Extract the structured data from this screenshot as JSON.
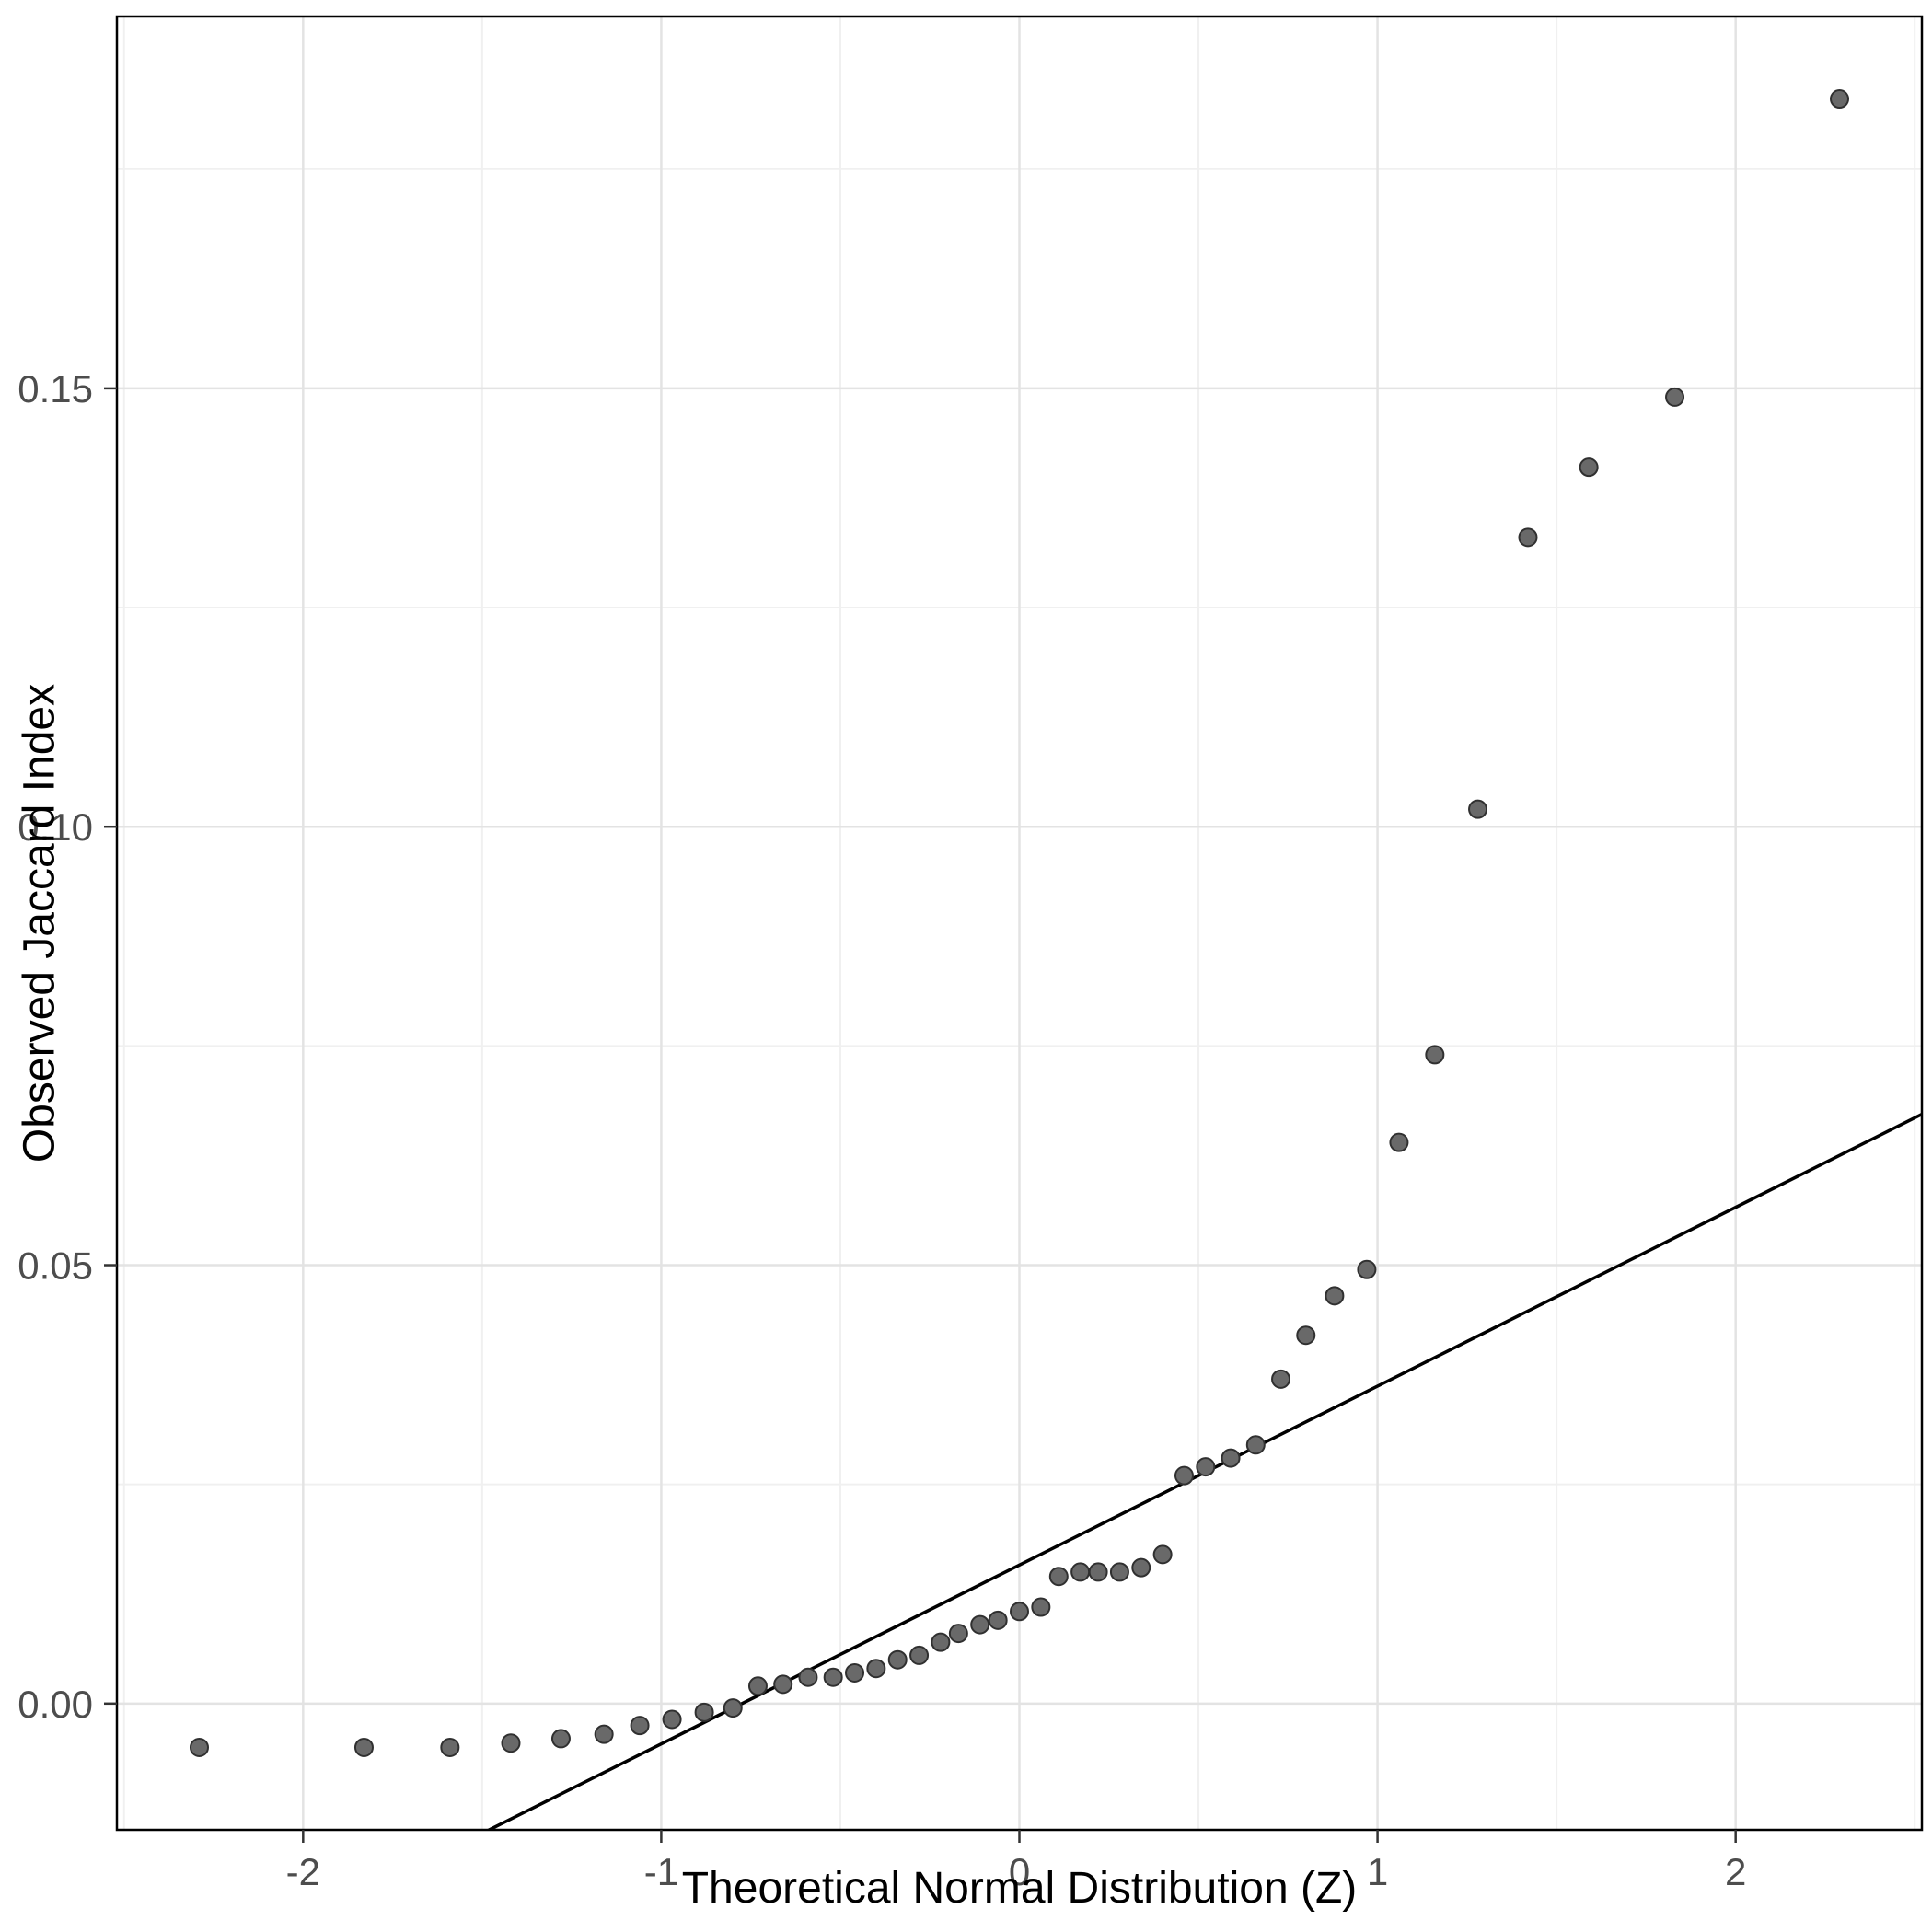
{
  "figure": {
    "background": "#ffffff"
  },
  "chart_data": {
    "type": "scatter",
    "title": "",
    "xlabel": "Theoretical Normal Distribution (Z)",
    "ylabel": "Observed Jaccard Index",
    "xlim": [
      -2.52,
      2.52
    ],
    "ylim": [
      -0.0144,
      0.1924
    ],
    "x_ticks": [
      -2,
      -1,
      0,
      1,
      2
    ],
    "x_tick_labels": [
      "-2",
      "-1",
      "0",
      "1",
      "2"
    ],
    "x_minor": [
      -2.5,
      -1.5,
      -0.5,
      0.5,
      1.5,
      2.5
    ],
    "y_ticks": [
      0,
      0.05,
      0.1,
      0.15
    ],
    "y_tick_labels": [
      "0.00",
      "0.05",
      "0.10",
      "0.15"
    ],
    "y_minor": [
      0.025,
      0.075,
      0.125,
      0.175
    ],
    "grid": "major+minor",
    "legend": "none",
    "panel": {
      "background": "#ffffff",
      "border_color": "#000000",
      "grid_major_color": "#e3e3e3",
      "grid_minor_color": "#f0f0f0",
      "tick_color": "#333333",
      "tick_label_color": "#4d4d4d"
    },
    "reference_line": {
      "type": "qq-line",
      "slope": 0.0204,
      "intercept": 0.0158,
      "color": "#000000"
    },
    "point_style": {
      "fill": "#696969",
      "stroke": "#303030",
      "radius": 9.5
    },
    "points": [
      [
        -2.29,
        -0.005
      ],
      [
        -1.83,
        -0.005
      ],
      [
        -1.59,
        -0.005
      ],
      [
        -1.42,
        -0.0045
      ],
      [
        -1.28,
        -0.004
      ],
      [
        -1.16,
        -0.0035
      ],
      [
        -1.06,
        -0.0025
      ],
      [
        -0.97,
        -0.0018
      ],
      [
        -0.88,
        -0.001
      ],
      [
        -0.8,
        -0.0005
      ],
      [
        -0.73,
        0.002
      ],
      [
        -0.66,
        0.0022
      ],
      [
        -0.59,
        0.003
      ],
      [
        -0.52,
        0.003
      ],
      [
        -0.46,
        0.0035
      ],
      [
        -0.4,
        0.004
      ],
      [
        -0.34,
        0.005
      ],
      [
        -0.28,
        0.0055
      ],
      [
        -0.22,
        0.007
      ],
      [
        -0.17,
        0.008
      ],
      [
        -0.11,
        0.009
      ],
      [
        -0.06,
        0.0095
      ],
      [
        0,
        0.0105
      ],
      [
        0.06,
        0.011
      ],
      [
        0.11,
        0.0145
      ],
      [
        0.17,
        0.015
      ],
      [
        0.22,
        0.015
      ],
      [
        0.28,
        0.015
      ],
      [
        0.34,
        0.0155
      ],
      [
        0.4,
        0.017
      ],
      [
        0.46,
        0.026
      ],
      [
        0.52,
        0.027
      ],
      [
        0.59,
        0.028
      ],
      [
        0.66,
        0.0295
      ],
      [
        0.73,
        0.037
      ],
      [
        0.8,
        0.042
      ],
      [
        0.88,
        0.0465
      ],
      [
        0.97,
        0.0495
      ],
      [
        1.06,
        0.064
      ],
      [
        1.16,
        0.074
      ],
      [
        1.28,
        0.102
      ],
      [
        1.42,
        0.133
      ],
      [
        1.59,
        0.141
      ],
      [
        1.83,
        0.149
      ],
      [
        2.29,
        0.183
      ]
    ]
  }
}
